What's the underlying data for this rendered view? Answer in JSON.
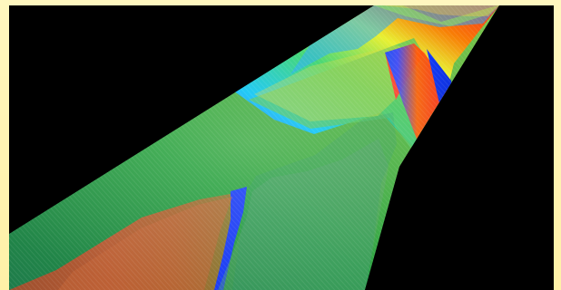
{
  "scene": {
    "type": "color-phase visualization",
    "background_color": "#000000",
    "frame_color": "#fff4b3",
    "palette": [
      "#1b2cff",
      "#00c8ff",
      "#24c77a",
      "#3ea23a",
      "#f0cf2a",
      "#ff6a00",
      "#ff2020"
    ]
  }
}
